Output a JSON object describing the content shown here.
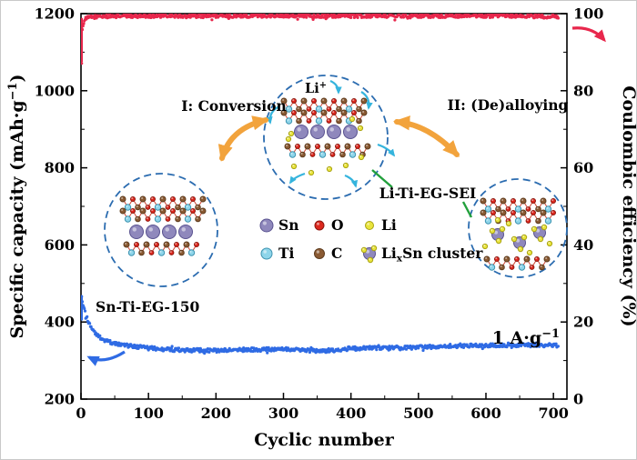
{
  "chart_data": {
    "type": "scatter",
    "title": "",
    "xlabel": "Cyclic number",
    "ylabel_left": "Specific capacity (mAh·g^{−1})",
    "ylabel_right": "Coulombic efficiency (%)",
    "xlim": [
      0,
      720
    ],
    "xticks": [
      0,
      100,
      200,
      300,
      400,
      500,
      600,
      700
    ],
    "ylim_left": [
      200,
      1200
    ],
    "yticks_left": [
      200,
      400,
      600,
      800,
      1000,
      1200
    ],
    "ylim_right": [
      0,
      100
    ],
    "yticks_right": [
      0,
      20,
      40,
      60,
      80,
      100
    ],
    "grid": false,
    "series": [
      {
        "name": "Coulombic efficiency",
        "axis": "right",
        "color": "#e8274c",
        "units": "%",
        "anchors": [
          [
            1,
            87.5
          ],
          [
            2,
            95.5
          ],
          [
            3,
            97.2
          ],
          [
            5,
            98.2
          ],
          [
            8,
            98.8
          ],
          [
            15,
            99.1
          ],
          [
            30,
            99.3
          ],
          [
            60,
            99.4
          ],
          [
            100,
            99.4
          ],
          [
            200,
            99.4
          ],
          [
            300,
            99.5
          ],
          [
            400,
            99.4
          ],
          [
            500,
            99.4
          ],
          [
            600,
            99.4
          ],
          [
            650,
            99.4
          ],
          [
            700,
            99.2
          ],
          [
            707,
            99.0
          ]
        ],
        "noise": 0.45,
        "spike": 1.1
      },
      {
        "name": "Specific capacity",
        "axis": "left",
        "color": "#2f6be4",
        "units": "mAh·g−1",
        "anchors": [
          [
            1,
            468
          ],
          [
            2,
            452
          ],
          [
            4,
            436
          ],
          [
            6,
            424
          ],
          [
            10,
            404
          ],
          [
            15,
            385
          ],
          [
            20,
            372
          ],
          [
            30,
            357
          ],
          [
            40,
            349
          ],
          [
            60,
            341
          ],
          [
            80,
            336
          ],
          [
            100,
            332
          ],
          [
            150,
            327
          ],
          [
            200,
            326
          ],
          [
            250,
            328
          ],
          [
            300,
            330
          ],
          [
            330,
            327
          ],
          [
            360,
            325
          ],
          [
            400,
            331
          ],
          [
            450,
            333
          ],
          [
            500,
            334
          ],
          [
            550,
            338
          ],
          [
            600,
            339
          ],
          [
            650,
            340
          ],
          [
            700,
            340
          ],
          [
            707,
            339
          ]
        ],
        "noise": 5,
        "spike": 6
      }
    ],
    "annotations": {
      "rate_label": "1 A·g^{−1}",
      "sample_label": "Sn-Ti-EG-150",
      "process1_label": "I: Conversion",
      "process2_label": "II: (De)alloying",
      "sei_label": "Li-Ti-EG-SEI",
      "li_ion_label": "Li^{+}"
    },
    "legend": {
      "items": [
        {
          "label": "Sn",
          "type": "sphere",
          "color": "#8f88bc",
          "edge": "#5a5390",
          "size": 7
        },
        {
          "label": "O",
          "type": "sphere",
          "color": "#dc281e",
          "edge": "#8c150d",
          "size": 5
        },
        {
          "label": "Li",
          "type": "sphere",
          "color": "#e9e43c",
          "edge": "#a9a312",
          "size": 4.5
        },
        {
          "label": "Ti",
          "type": "sphere",
          "color": "#8ed5ea",
          "edge": "#3e93b0",
          "size": 6
        },
        {
          "label": "C",
          "type": "sphere",
          "color": "#8a5a33",
          "edge": "#5e3c1e",
          "size": 5.5
        },
        {
          "label": "Li_{x}Sn cluster",
          "type": "cluster",
          "color": "#8f88bc",
          "edge": "#5a5390",
          "size": 6.5
        }
      ]
    },
    "colors": {
      "efficiency": "#e8274c",
      "capacity": "#2f6be4",
      "inset_ring": "#2b6cb0",
      "arrow_orange": "#f2a33c",
      "sei_line": "#22a03c",
      "li_arrow_cyan": "#35b4dd",
      "axis": "#000000"
    }
  }
}
